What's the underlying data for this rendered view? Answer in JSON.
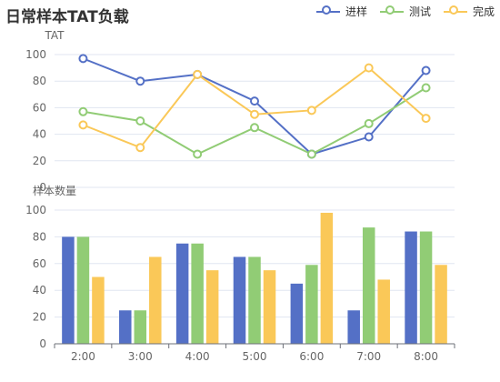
{
  "chart_data": [
    {
      "type": "line",
      "title": "日常样本TAT负载",
      "ylabel": "TAT",
      "xlabel": "",
      "categories": [
        "2:00",
        "3:00",
        "4:00",
        "5:00",
        "6:00",
        "7:00",
        "8:00"
      ],
      "ylim": [
        0,
        100
      ],
      "yticks": [
        0,
        20,
        40,
        60,
        80,
        100
      ],
      "grid": true,
      "legend_position": "top-right",
      "series": [
        {
          "name": "进样",
          "color": "#5470c6",
          "values": [
            97,
            80,
            85,
            65,
            25,
            38,
            88
          ]
        },
        {
          "name": "测试",
          "color": "#91cc75",
          "values": [
            57,
            50,
            25,
            45,
            25,
            48,
            75
          ]
        },
        {
          "name": "完成",
          "color": "#fac858",
          "values": [
            47,
            30,
            85,
            55,
            58,
            90,
            52
          ]
        }
      ]
    },
    {
      "type": "bar",
      "title": "",
      "ylabel": "样本数量",
      "xlabel": "",
      "categories": [
        "2:00",
        "3:00",
        "4:00",
        "5:00",
        "6:00",
        "7:00",
        "8:00"
      ],
      "ylim": [
        0,
        100
      ],
      "yticks": [
        0,
        20,
        40,
        60,
        80,
        100
      ],
      "grid": true,
      "series": [
        {
          "name": "进样",
          "color": "#5470c6",
          "values": [
            80,
            25,
            75,
            65,
            45,
            25,
            84
          ]
        },
        {
          "name": "测试",
          "color": "#91cc75",
          "values": [
            80,
            25,
            75,
            65,
            59,
            87,
            84
          ]
        },
        {
          "name": "完成",
          "color": "#fac858",
          "values": [
            50,
            65,
            55,
            55,
            98,
            48,
            59
          ]
        }
      ]
    }
  ]
}
